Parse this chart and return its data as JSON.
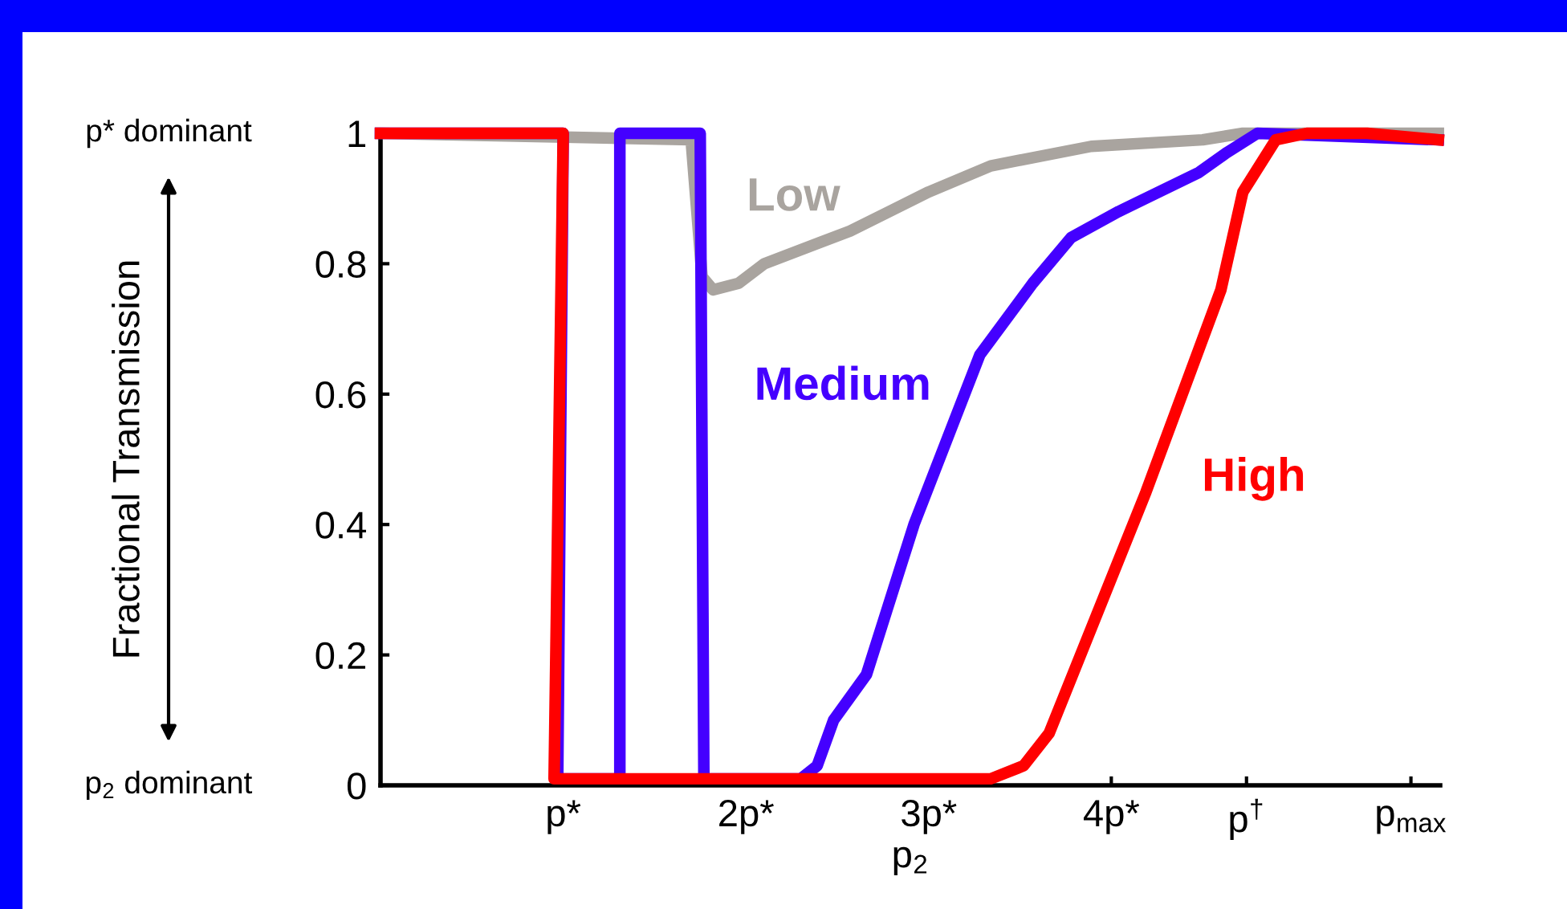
{
  "chart_data": {
    "type": "line",
    "xlabel": "p$_{2}$",
    "annotations": [
      "p* dominant",
      "p$_{2}$ dominant",
      "Fractional Transmission"
    ],
    "xlim": [
      0,
      5.8
    ],
    "ylim": [
      0,
      1
    ],
    "xticks": [
      {
        "value": 1,
        "label": "p*"
      },
      {
        "value": 2,
        "label": "2p*"
      },
      {
        "value": 3,
        "label": "3p*"
      },
      {
        "value": 4,
        "label": "4p*"
      },
      {
        "value": 4.74,
        "label": "p$^{†}$"
      },
      {
        "value": 5.64,
        "label": "p$_{max}$"
      }
    ],
    "yticks": [
      0,
      0.2,
      0.4,
      0.6,
      0.8,
      1
    ],
    "grid": false,
    "legend": false,
    "marker": "none",
    "line_style": "solid",
    "series": [
      {
        "name": "Low",
        "color": "#a9a49f",
        "x": [
          0,
          1.7,
          1.76,
          1.82,
          1.96,
          2.1,
          2.57,
          3.0,
          3.34,
          3.89,
          4.5,
          4.72,
          5.79
        ],
        "values": [
          1,
          0.99,
          0.78,
          0.76,
          0.77,
          0.8,
          0.85,
          0.91,
          0.95,
          0.98,
          0.99,
          1.0,
          1.0
        ]
      },
      {
        "name": "Medium",
        "color": "#4400ff",
        "x": [
          0,
          1.0,
          0.97,
          1.31,
          1.31,
          1.75,
          1.77,
          2.3,
          2.39,
          2.48,
          2.66,
          2.92,
          3.28,
          3.57,
          3.78,
          4.04,
          4.48,
          4.63,
          4.8,
          5.79
        ],
        "values": [
          1,
          1,
          0.01,
          0.01,
          1,
          1,
          0.01,
          0.01,
          0.03,
          0.1,
          0.17,
          0.4,
          0.66,
          0.77,
          0.84,
          0.88,
          0.94,
          0.97,
          1.0,
          0.99
        ]
      },
      {
        "name": "High",
        "color": "#ff0000",
        "x": [
          0,
          1.0,
          0.95,
          3.34,
          3.52,
          3.66,
          4.19,
          4.6,
          4.72,
          4.9,
          5.07,
          5.4,
          5.79
        ],
        "values": [
          1,
          1,
          0.01,
          0.01,
          0.03,
          0.08,
          0.45,
          0.76,
          0.91,
          0.99,
          1.0,
          1.0,
          0.99
        ]
      }
    ]
  }
}
